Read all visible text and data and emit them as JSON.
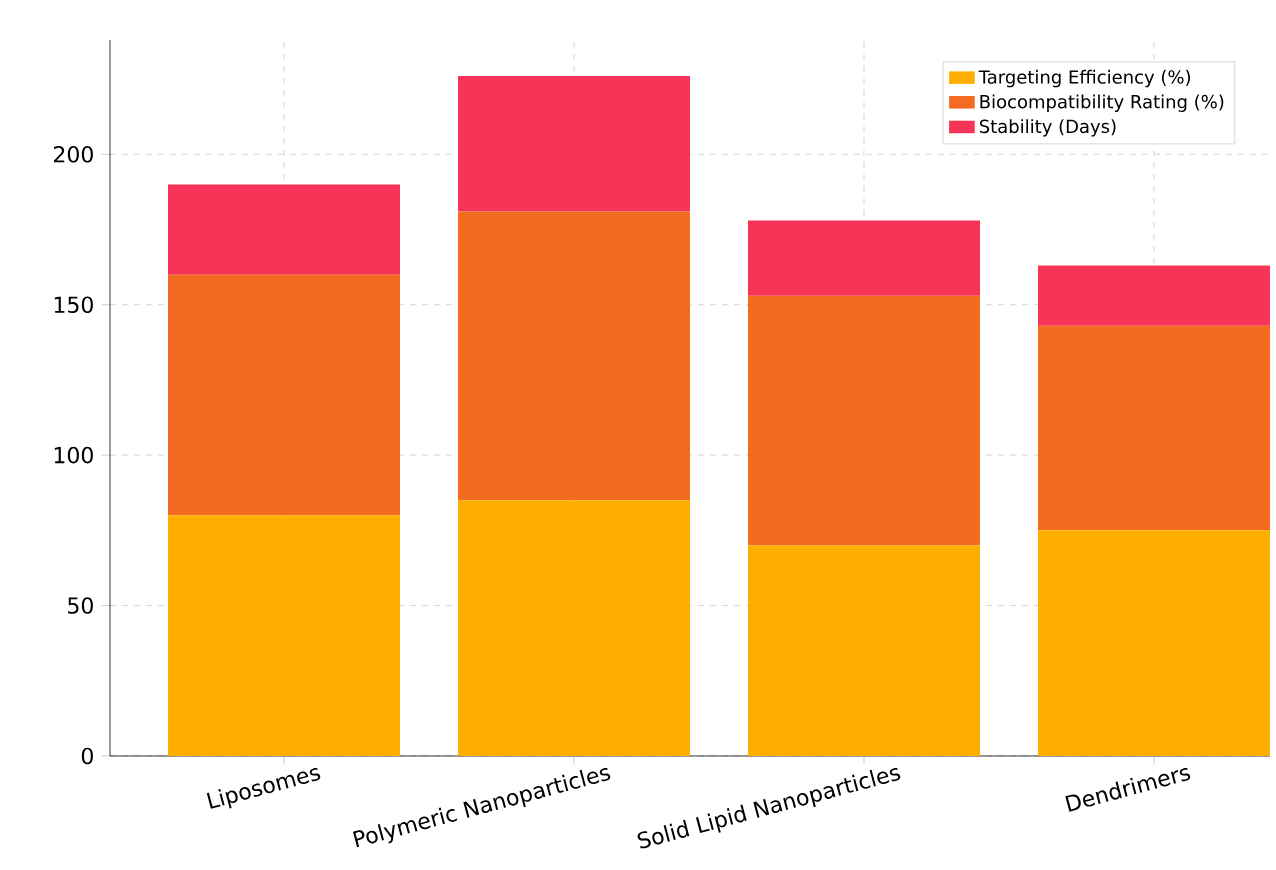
{
  "chart_data": {
    "type": "bar",
    "stacked": true,
    "categories": [
      "Liposomes",
      "Polymeric Nanoparticles",
      "Solid Lipid Nanoparticles",
      "Dendrimers"
    ],
    "series": [
      {
        "name": "Targeting Efficiency (%)",
        "color": "#ffae00",
        "values": [
          80,
          85,
          70,
          75
        ]
      },
      {
        "name": "Biocompatibility Rating (%)",
        "color": "#f26b21",
        "values": [
          80,
          96,
          83,
          68
        ]
      },
      {
        "name": "Stability (Days)",
        "color": "#f53458",
        "values": [
          30,
          45,
          25,
          20
        ]
      }
    ],
    "ylim": [
      0,
      238
    ],
    "yticks": [
      0,
      50,
      100,
      150,
      200
    ],
    "grid": true,
    "legend": "top right"
  }
}
